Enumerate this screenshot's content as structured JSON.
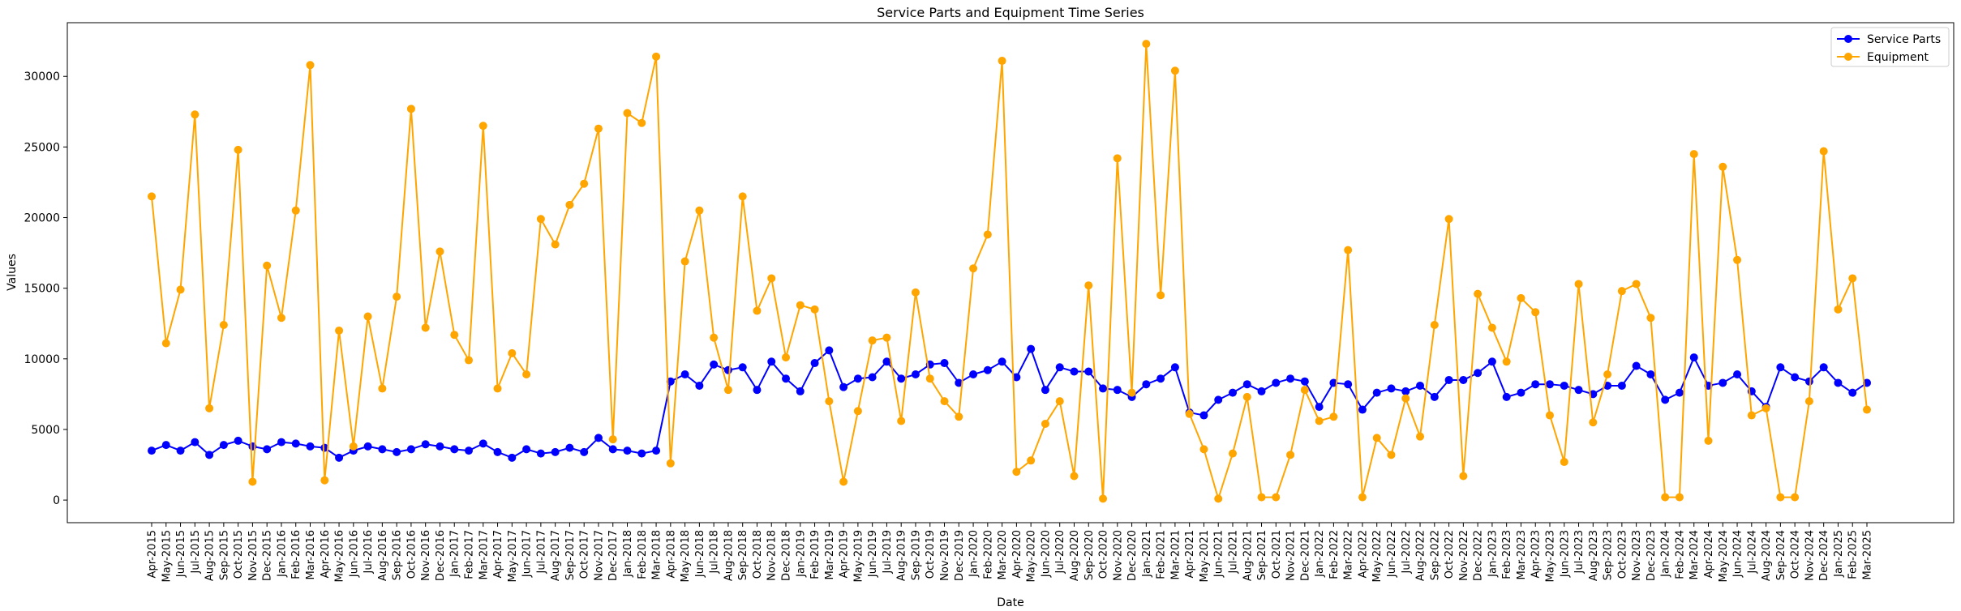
{
  "chart_data": {
    "type": "line",
    "title": "Service Parts and Equipment Time Series",
    "xlabel": "Date",
    "ylabel": "Values",
    "ylim": [
      -1600,
      33800
    ],
    "yticks": [
      0,
      5000,
      10000,
      15000,
      20000,
      25000,
      30000
    ],
    "grid": false,
    "legend_position": "top-right",
    "categories": [
      "Apr-2015",
      "May-2015",
      "Jun-2015",
      "Jul-2015",
      "Aug-2015",
      "Sep-2015",
      "Oct-2015",
      "Nov-2015",
      "Dec-2015",
      "Jan-2016",
      "Feb-2016",
      "Mar-2016",
      "Apr-2016",
      "May-2016",
      "Jun-2016",
      "Jul-2016",
      "Aug-2016",
      "Sep-2016",
      "Oct-2016",
      "Nov-2016",
      "Dec-2016",
      "Jan-2017",
      "Feb-2017",
      "Mar-2017",
      "Apr-2017",
      "May-2017",
      "Jun-2017",
      "Jul-2017",
      "Aug-2017",
      "Sep-2017",
      "Oct-2017",
      "Nov-2017",
      "Dec-2017",
      "Jan-2018",
      "Feb-2018",
      "Mar-2018",
      "Apr-2018",
      "May-2018",
      "Jun-2018",
      "Jul-2018",
      "Aug-2018",
      "Sep-2018",
      "Oct-2018",
      "Nov-2018",
      "Dec-2018",
      "Jan-2019",
      "Feb-2019",
      "Mar-2019",
      "Apr-2019",
      "May-2019",
      "Jun-2019",
      "Jul-2019",
      "Aug-2019",
      "Sep-2019",
      "Oct-2019",
      "Nov-2019",
      "Dec-2019",
      "Jan-2020",
      "Feb-2020",
      "Mar-2020",
      "Apr-2020",
      "May-2020",
      "Jun-2020",
      "Jul-2020",
      "Aug-2020",
      "Sep-2020",
      "Oct-2020",
      "Nov-2020",
      "Dec-2020",
      "Jan-2021",
      "Feb-2021",
      "Mar-2021",
      "Apr-2021",
      "May-2021",
      "Jun-2021",
      "Jul-2021",
      "Aug-2021",
      "Sep-2021",
      "Oct-2021",
      "Nov-2021",
      "Dec-2021",
      "Jan-2022",
      "Feb-2022",
      "Mar-2022",
      "Apr-2022",
      "May-2022",
      "Jun-2022",
      "Jul-2022",
      "Aug-2022",
      "Sep-2022",
      "Oct-2022",
      "Nov-2022",
      "Dec-2022",
      "Jan-2023",
      "Feb-2023",
      "Mar-2023",
      "Apr-2023",
      "May-2023",
      "Jun-2023",
      "Jul-2023",
      "Aug-2023",
      "Sep-2023",
      "Oct-2023",
      "Nov-2023",
      "Dec-2023",
      "Jan-2024",
      "Feb-2024",
      "Mar-2024",
      "Apr-2024",
      "May-2024",
      "Jun-2024",
      "Jul-2024",
      "Aug-2024",
      "Sep-2024",
      "Oct-2024",
      "Nov-2024",
      "Dec-2024",
      "Jan-2025",
      "Feb-2025",
      "Mar-2025"
    ],
    "series": [
      {
        "name": "Service Parts",
        "color": "#0000ff",
        "values": [
          3500,
          3900,
          3500,
          4100,
          3200,
          3900,
          4200,
          3800,
          3600,
          4100,
          4000,
          3800,
          3700,
          3000,
          3500,
          3800,
          3600,
          3400,
          3600,
          3950,
          3800,
          3600,
          3500,
          4000,
          3400,
          3000,
          3600,
          3300,
          3400,
          3700,
          3400,
          4400,
          3600,
          3500,
          3300,
          3500,
          8400,
          8900,
          8100,
          9600,
          9200,
          9400,
          7800,
          9800,
          8600,
          7700,
          9700,
          10600,
          8000,
          8600,
          8700,
          9800,
          8600,
          8900,
          9600,
          9700,
          8300,
          8900,
          9200,
          9800,
          8700,
          10700,
          7800,
          9400,
          9100,
          9100,
          7900,
          7800,
          7300,
          8200,
          8600,
          9400,
          6200,
          6000,
          7100,
          7600,
          8200,
          7700,
          8300,
          8600,
          8400,
          6600,
          8300,
          8200,
          6400,
          7600,
          7900,
          7700,
          8100,
          7300,
          8500,
          8500,
          9000,
          9800,
          7300,
          7600,
          8200,
          8200,
          8100,
          7800,
          7500,
          8100,
          8100,
          9500,
          8900,
          7100,
          7600,
          10100,
          8100,
          8300,
          8900,
          7700,
          6600,
          9400,
          8700,
          8400,
          9400,
          8300,
          7600,
          8300
        ]
      },
      {
        "name": "Equipment",
        "color": "#ffa500",
        "values": [
          21500,
          11100,
          14900,
          27300,
          6500,
          12400,
          24800,
          1300,
          16600,
          12900,
          20500,
          30800,
          1400,
          12000,
          3800,
          13000,
          7900,
          14400,
          27700,
          12200,
          17600,
          11700,
          9900,
          26500,
          7900,
          10400,
          8900,
          19900,
          18100,
          20900,
          22400,
          26300,
          4300,
          27400,
          26700,
          31400,
          2600,
          16900,
          20500,
          11500,
          7800,
          21500,
          13400,
          15700,
          10100,
          13800,
          13500,
          7000,
          1300,
          6300,
          11300,
          11500,
          5600,
          14700,
          8600,
          7000,
          5900,
          16400,
          18800,
          31100,
          2000,
          2800,
          5400,
          7000,
          1700,
          15200,
          100,
          24200,
          7600,
          32300,
          14500,
          30400,
          6100,
          3600,
          100,
          3300,
          7300,
          200,
          200,
          3200,
          7800,
          5600,
          5900,
          17700,
          200,
          4400,
          3200,
          7200,
          4500,
          12400,
          19900,
          1700,
          14600,
          12200,
          9800,
          14300,
          13300,
          6000,
          2700,
          15300,
          5500,
          8900,
          14800,
          15300,
          12900,
          200,
          200,
          24500,
          4200,
          23600,
          17000,
          6000,
          6500,
          200,
          200,
          7000,
          24700,
          13500,
          15700,
          6400
        ]
      }
    ]
  }
}
